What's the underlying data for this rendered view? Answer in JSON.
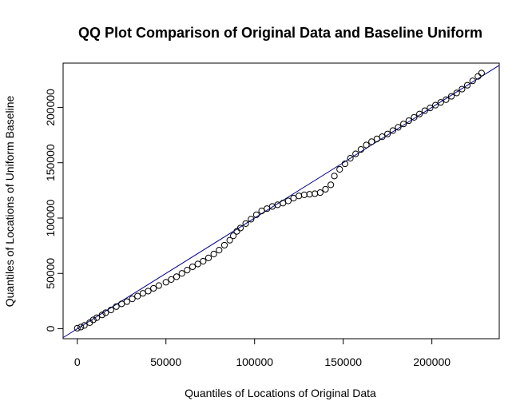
{
  "chart_data": {
    "type": "scatter",
    "title": "QQ Plot Comparison of Original Data and Baseline Uniform",
    "xlabel": "Quantiles of Locations of Original Data",
    "ylabel": "Quantiles of Locations of Uniform Baseline",
    "xlim": [
      -8000,
      238000
    ],
    "ylim": [
      -9000,
      240000
    ],
    "x_ticks": [
      0,
      50000,
      100000,
      150000,
      200000
    ],
    "x_tick_labels": [
      "0",
      "50000",
      "100000",
      "150000",
      "200000"
    ],
    "y_ticks": [
      0,
      50000,
      100000,
      150000,
      200000
    ],
    "y_tick_labels": [
      "0",
      "50000",
      "100000",
      "150000",
      "200000"
    ],
    "reference_line": {
      "slope": 1,
      "intercept": 0,
      "color": "#00008B"
    },
    "point_color": "#000000",
    "grid": false,
    "legend": "none",
    "x": [
      0,
      2000,
      4000,
      7000,
      9000,
      11000,
      14000,
      16000,
      19000,
      22000,
      25000,
      28000,
      31000,
      34000,
      37000,
      40000,
      43000,
      46000,
      50000,
      53000,
      56000,
      59000,
      62000,
      65000,
      68000,
      71000,
      74000,
      77000,
      80000,
      83000,
      86000,
      88000,
      90000,
      92000,
      95000,
      98000,
      101000,
      104000,
      107000,
      110000,
      113000,
      116000,
      119000,
      122000,
      125000,
      128000,
      131000,
      134000,
      137000,
      140000,
      143000,
      145000,
      148000,
      151000,
      154000,
      157000,
      160000,
      163000,
      166000,
      169000,
      172000,
      175000,
      178000,
      181000,
      184000,
      187000,
      190000,
      193000,
      196000,
      199000,
      202000,
      205000,
      208000,
      211000,
      214000,
      217000,
      220000,
      223000,
      226000,
      228000
    ],
    "y": [
      500,
      1500,
      3000,
      5500,
      8000,
      10000,
      12500,
      14500,
      17000,
      20000,
      22500,
      24500,
      27000,
      29500,
      32000,
      34000,
      36500,
      39000,
      42000,
      44500,
      47000,
      50000,
      53000,
      56000,
      58500,
      61000,
      64000,
      67500,
      71000,
      75500,
      80000,
      84000,
      88000,
      91000,
      95000,
      99000,
      103000,
      106500,
      108500,
      110500,
      112000,
      113500,
      115500,
      118000,
      120000,
      121000,
      121500,
      122000,
      123000,
      126000,
      130000,
      138000,
      144000,
      149000,
      154000,
      158000,
      162000,
      166000,
      169000,
      171500,
      173500,
      176000,
      179000,
      182000,
      185000,
      188000,
      191000,
      194000,
      197000,
      199500,
      202000,
      204500,
      207000,
      210000,
      213000,
      216500,
      220000,
      224000,
      228000,
      231000
    ]
  }
}
